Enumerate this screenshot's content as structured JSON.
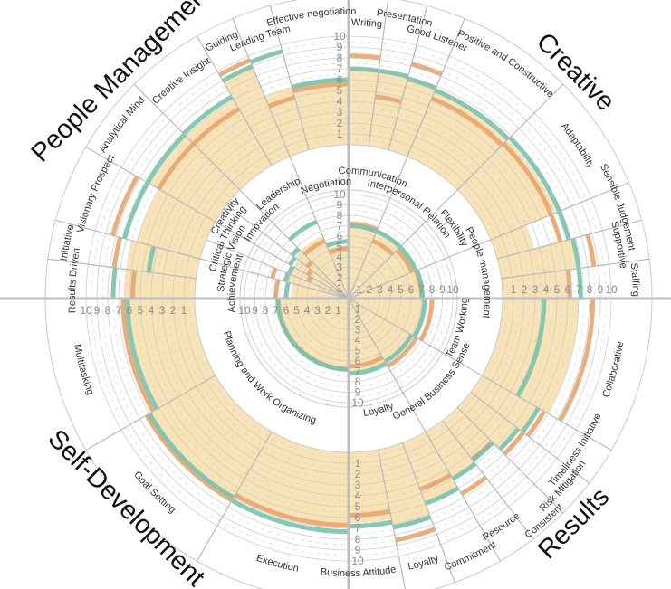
{
  "chart_data": {
    "type": "polar-bar",
    "title": "",
    "value_range": [
      0,
      10
    ],
    "ticks": [
      "1",
      "2",
      "3",
      "4",
      "5",
      "6",
      "7",
      "8",
      "9",
      "10"
    ],
    "colors": {
      "fill": "#f8e3b6",
      "orange_marker": "#e8a56e",
      "green_marker": "#79c2ae",
      "grid": "#c9c9c9",
      "axis": "#bdbdbd"
    },
    "outer_groups": [
      {
        "title": "People Management",
        "categories": [
          {
            "name": "Results Driven",
            "value": 6.5,
            "orange": 5.7,
            "green": 7.5
          },
          {
            "name": "Initiative",
            "value": 6.5,
            "orange": 7.6,
            "green": 4.4
          },
          {
            "name": "Visionary Prospect",
            "value": 6.0,
            "orange": 8.3,
            "green": 7.2
          },
          {
            "name": "Analytical Mind",
            "value": 7.0,
            "orange": 6.0,
            "green": 7.2
          },
          {
            "name": "Creative Insight",
            "value": 7.0,
            "orange": 6.0,
            "green": 7.3
          },
          {
            "name": "Guiding",
            "value": 9.0,
            "orange": 9.6,
            "green": 9.0
          },
          {
            "name": "Leading Team",
            "value": 6.0,
            "orange": 5.0,
            "green": 9.4
          },
          {
            "name": "Effective negotiation",
            "value": 6.0,
            "orange": 5.6,
            "green": 6.0
          }
        ]
      },
      {
        "title": "Creative",
        "categories": [
          {
            "name": "Writing",
            "value": 7.0,
            "orange": 8.2,
            "green": 7.0
          },
          {
            "name": "Presentation",
            "value": 7.0,
            "orange": 4.6,
            "green": 7.0
          },
          {
            "name": "Good Listener",
            "value": 6.8,
            "orange": 8.2,
            "green": 6.8
          },
          {
            "name": "Positive and Constructive",
            "value": 6.5,
            "orange": 5.8,
            "green": 6.6
          },
          {
            "name": "Adaptability",
            "value": 6.5,
            "orange": 6.0,
            "green": 6.8
          },
          {
            "name": "Sensible Judgement",
            "value": 3.5,
            "orange": 6.0,
            "green": 6.8
          },
          {
            "name": "Supportive",
            "value": 7.0,
            "orange": 8.6,
            "green": 7.2
          },
          {
            "name": "Staffing",
            "value": 6.0,
            "orange": 6.2,
            "green": 7.2
          }
        ]
      },
      {
        "title": "Results",
        "categories": [
          {
            "name": "Collaborative",
            "value": 7.0,
            "orange": 8.3,
            "green": 3.8
          },
          {
            "name": "Timeliness Initiative",
            "value": 6.2,
            "orange": 6.6,
            "green": 6.0
          },
          {
            "name": "Risk Mitigation",
            "value": 5.7,
            "orange": 6.1,
            "green": 5.5
          },
          {
            "name": "Consistent",
            "value": 4.5,
            "orange": 4.5,
            "green": 4.6
          },
          {
            "name": "Resource",
            "value": 5.0,
            "orange": 6.6,
            "green": 5.0
          },
          {
            "name": "Commitment",
            "value": 6.0,
            "orange": 4.6,
            "green": 6.0
          },
          {
            "name": "Loyalty",
            "value": 7.3,
            "orange": 8.5,
            "green": 7.3
          },
          {
            "name": "Business Attitude",
            "value": 6.5,
            "orange": 5.8,
            "green": 6.8
          }
        ]
      },
      {
        "title": "Self-Development",
        "categories": [
          {
            "name": "Execution",
            "value": 7.0,
            "orange": 6.7,
            "green": 7.3
          },
          {
            "name": "Goal Setting",
            "value": 7.2,
            "orange": 7.3,
            "green": 7.0
          },
          {
            "name": "Multitasking",
            "value": 6.0,
            "orange": 6.6,
            "green": 6.2
          }
        ]
      }
    ],
    "inner_groups": [
      {
        "categories": [
          {
            "name": "Achievement",
            "value": 5.5,
            "orange": 7.0,
            "green": 6.0
          },
          {
            "name": "Strategic Vision",
            "value": 6.5,
            "orange": 7.6,
            "green": 6.3
          },
          {
            "name": "Critical Thinking",
            "value": 6.0,
            "orange": 4.2,
            "green": 6.2
          },
          {
            "name": "Creativity",
            "value": 6.0,
            "orange": 4.5,
            "green": 6.5
          },
          {
            "name": "Innovation",
            "value": 6.5,
            "orange": 5.0,
            "green": 6.8
          },
          {
            "name": "Leadership",
            "value": 6.5,
            "orange": 6.0,
            "green": 8.0
          },
          {
            "name": "Negotiation",
            "value": 5.2,
            "orange": 4.8,
            "green": 5.5
          }
        ]
      },
      {
        "categories": [
          {
            "name": "Communication",
            "value": 7.0,
            "orange": 7.2,
            "green": 7.0
          },
          {
            "name": "Interpersonal Relation",
            "value": 7.0,
            "orange": 6.0,
            "green": 7.0
          },
          {
            "name": "Flexibility",
            "value": 6.8,
            "orange": 6.6,
            "green": 7.0
          },
          {
            "name": "People management",
            "value": 7.0,
            "orange": 7.0,
            "green": 7.1
          }
        ]
      },
      {
        "categories": [
          {
            "name": "Team Working",
            "value": 7.5,
            "orange": 8.0,
            "green": 7.3
          },
          {
            "name": "General Business Sense",
            "value": 7.0,
            "orange": 7.5,
            "green": 7.0
          },
          {
            "name": "Loyalty",
            "value": 7.0,
            "orange": 6.5,
            "green": 7.2
          }
        ]
      },
      {
        "categories": [
          {
            "name": "Planning and Work Organizing",
            "value": 7.0,
            "orange": 6.8,
            "green": 6.8
          }
        ]
      }
    ]
  }
}
